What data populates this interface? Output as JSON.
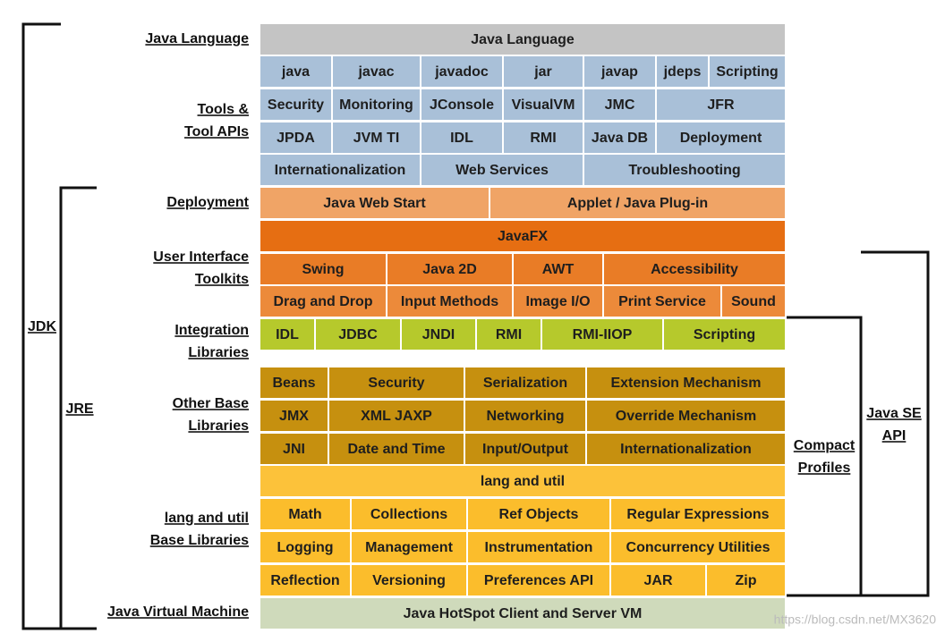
{
  "rows": [
    [
      "Java Language"
    ],
    [
      "java",
      "javac",
      "javadoc",
      "jar",
      "javap",
      "jdeps",
      "Scripting"
    ],
    [
      "Security",
      "Monitoring",
      "JConsole",
      "VisualVM",
      "JMC",
      "JFR"
    ],
    [
      "JPDA",
      "JVM TI",
      "IDL",
      "RMI",
      "Java DB",
      "Deployment"
    ],
    [
      "Internationalization",
      "Web Services",
      "Troubleshooting"
    ],
    [
      "Java Web Start",
      "Applet / Java Plug-in"
    ],
    [
      "JavaFX"
    ],
    [
      "Swing",
      "Java 2D",
      "AWT",
      "Accessibility"
    ],
    [
      "Drag and Drop",
      "Input Methods",
      "Image I/O",
      "Print Service",
      "Sound"
    ],
    [
      "IDL",
      "JDBC",
      "JNDI",
      "RMI",
      "RMI-IIOP",
      "Scripting"
    ],
    [
      "Beans",
      "Security",
      "Serialization",
      "Extension Mechanism"
    ],
    [
      "JMX",
      "XML JAXP",
      "Networking",
      "Override Mechanism"
    ],
    [
      "JNI",
      "Date and Time",
      "Input/Output",
      "Internationalization"
    ],
    [
      "lang and util"
    ],
    [
      "Math",
      "Collections",
      "Ref Objects",
      "Regular Expressions"
    ],
    [
      "Logging",
      "Management",
      "Instrumentation",
      "Concurrency Utilities"
    ],
    [
      "Reflection",
      "Versioning",
      "Preferences API",
      "JAR",
      "Zip"
    ],
    [
      "Java HotSpot Client and Server VM"
    ]
  ],
  "left_labels": [
    [
      "Java Language"
    ],
    [
      "Tools &",
      "Tool APIs"
    ],
    [
      "Deployment"
    ],
    [
      "User Interface",
      "Toolkits"
    ],
    [
      "Integration",
      "Libraries"
    ],
    [
      "Other Base",
      "Libraries"
    ],
    [
      "lang and util",
      "Base Libraries"
    ],
    [
      "Java Virtual Machine"
    ]
  ],
  "brackets": {
    "jdk": "JDK",
    "jre": "JRE",
    "compact_profiles": [
      "Compact",
      "Profiles"
    ],
    "java_se_api": [
      "Java SE",
      "API"
    ]
  },
  "watermark": "https://blog.csdn.net/MX3620"
}
